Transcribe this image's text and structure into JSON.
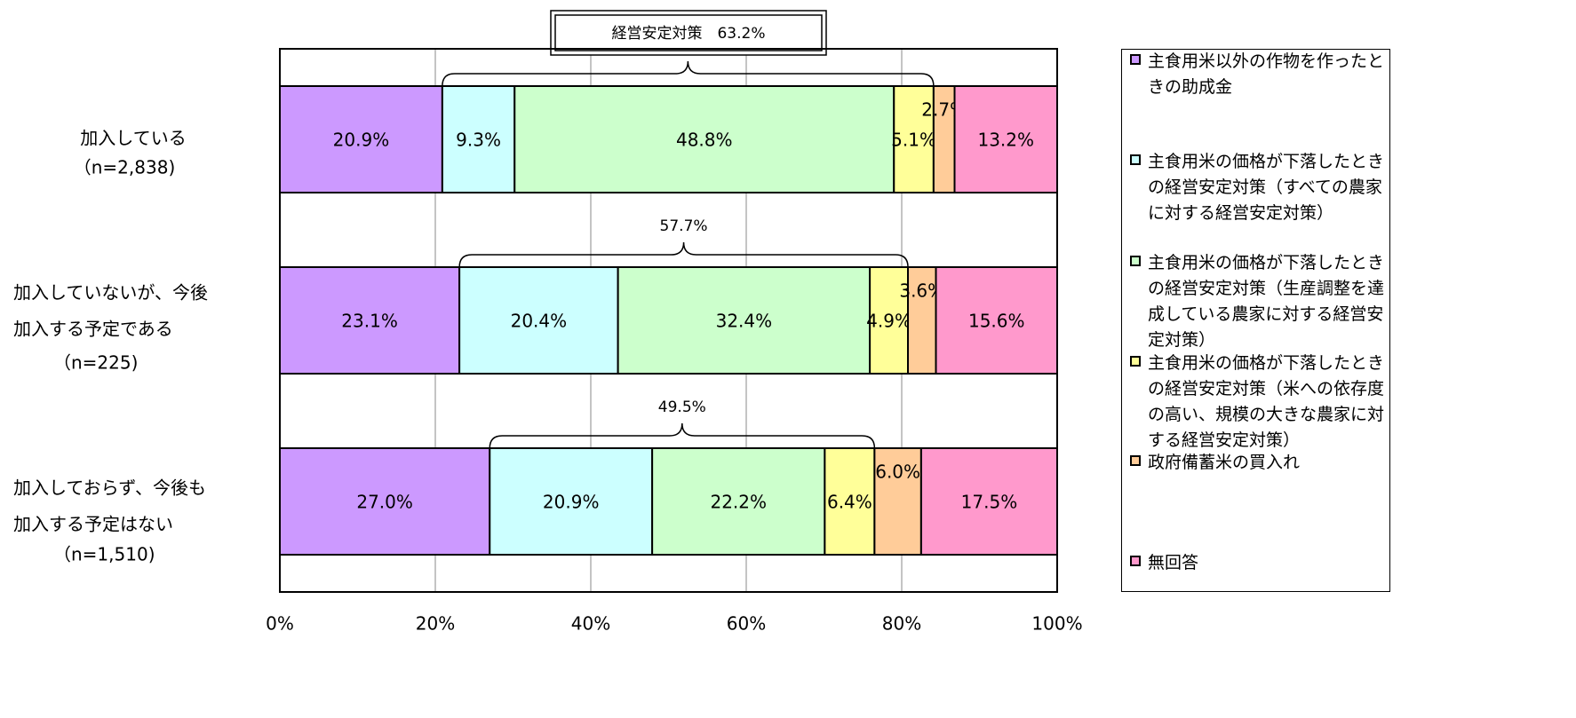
{
  "chart_data": {
    "type": "stacked-bar-horizontal",
    "categories": [
      [
        "加入している",
        "（n=2,838)"
      ],
      [
        "加入していないが、今後",
        "加入する予定である",
        "（n=225)"
      ],
      [
        "加入しておらず、今後も",
        "加入する予定はない",
        "（n=1,510)"
      ]
    ],
    "series": [
      {
        "name": "主食用米以外の作物を作ったときの助成金",
        "color": "#cc99ff",
        "values": [
          20.9,
          23.1,
          27.0
        ],
        "value_labels": [
          "20.9%",
          "23.1%",
          "27.0%"
        ]
      },
      {
        "name": "主食用米の価格が下落したときの経営安定対策（すべての農家に対する経営安定対策）",
        "color": "#ccffff",
        "values": [
          9.3,
          20.4,
          20.9
        ],
        "value_labels": [
          "9.3%",
          "20.4%",
          "20.9%"
        ]
      },
      {
        "name": "主食用米の価格が下落したときの経営安定対策（生産調整を達成している農家に対する経営安定対策）",
        "color": "#ccffcc",
        "values": [
          48.8,
          32.4,
          22.2
        ],
        "value_labels": [
          "48.8%",
          "32.4%",
          "22.2%"
        ]
      },
      {
        "name": "主食用米の価格が下落したときの経営安定対策（米への依存度の高い、規模の大きな農家に対する経営安定対策）",
        "color": "#ffff99",
        "values": [
          5.1,
          4.9,
          6.4
        ],
        "value_labels": [
          "5.1%",
          "4.9%",
          "6.4%"
        ]
      },
      {
        "name": "政府備蓄米の買入れ",
        "color": "#ffcc99",
        "values": [
          2.7,
          3.6,
          6.0
        ],
        "value_labels": [
          "2.7%",
          "3.6%",
          "6.0%"
        ]
      },
      {
        "name": "無回答",
        "color": "#ff99cc",
        "values": [
          13.2,
          15.6,
          17.5
        ],
        "value_labels": [
          "13.2%",
          "15.6%",
          "17.5%"
        ]
      }
    ],
    "annotations": [
      "経営安定対策　63.2%",
      "57.7%",
      "49.5%"
    ],
    "xlim": [
      0,
      100
    ],
    "xticks": [
      {
        "value": 0,
        "label": "0%"
      },
      {
        "value": 20,
        "label": "20%"
      },
      {
        "value": 40,
        "label": "40%"
      },
      {
        "value": 60,
        "label": "60%"
      },
      {
        "value": 80,
        "label": "80%"
      },
      {
        "value": 100,
        "label": "100%"
      }
    ],
    "grid": true
  }
}
